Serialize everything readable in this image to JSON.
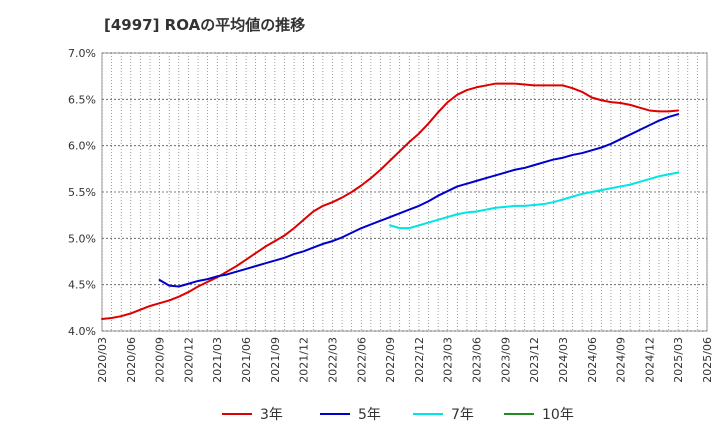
{
  "chart_data": {
    "type": "line",
    "title": "[4997]  ROAの平均値の推移",
    "xlabel": "",
    "ylabel": "",
    "ylim": [
      4.0,
      7.0
    ],
    "y_ticks": [
      "4.0%",
      "4.5%",
      "5.0%",
      "5.5%",
      "6.0%",
      "6.5%",
      "7.0%"
    ],
    "x_ticks": [
      "2020/03",
      "2020/06",
      "2020/09",
      "2020/12",
      "2021/03",
      "2021/06",
      "2021/09",
      "2021/12",
      "2022/03",
      "2022/06",
      "2022/09",
      "2022/12",
      "2023/03",
      "2023/06",
      "2023/09",
      "2023/12",
      "2024/03",
      "2024/06",
      "2024/09",
      "2024/12",
      "2025/03",
      "2025/06"
    ],
    "grid": true,
    "legend_position": "bottom",
    "series": [
      {
        "name": "3年",
        "color": "#dd0000",
        "points": [
          [
            "2020/03",
            4.13
          ],
          [
            "2020/04",
            4.14
          ],
          [
            "2020/05",
            4.16
          ],
          [
            "2020/06",
            4.19
          ],
          [
            "2020/07",
            4.23
          ],
          [
            "2020/08",
            4.27
          ],
          [
            "2020/09",
            4.3
          ],
          [
            "2020/10",
            4.33
          ],
          [
            "2020/11",
            4.37
          ],
          [
            "2020/12",
            4.42
          ],
          [
            "2021/01",
            4.48
          ],
          [
            "2021/02",
            4.53
          ],
          [
            "2021/03",
            4.58
          ],
          [
            "2021/04",
            4.64
          ],
          [
            "2021/05",
            4.7
          ],
          [
            "2021/06",
            4.77
          ],
          [
            "2021/07",
            4.84
          ],
          [
            "2021/08",
            4.91
          ],
          [
            "2021/09",
            4.97
          ],
          [
            "2021/10",
            5.03
          ],
          [
            "2021/11",
            5.11
          ],
          [
            "2021/12",
            5.2
          ],
          [
            "2022/01",
            5.29
          ],
          [
            "2022/02",
            5.35
          ],
          [
            "2022/03",
            5.39
          ],
          [
            "2022/04",
            5.44
          ],
          [
            "2022/05",
            5.5
          ],
          [
            "2022/06",
            5.57
          ],
          [
            "2022/07",
            5.65
          ],
          [
            "2022/08",
            5.74
          ],
          [
            "2022/09",
            5.84
          ],
          [
            "2022/10",
            5.94
          ],
          [
            "2022/11",
            6.04
          ],
          [
            "2022/12",
            6.13
          ],
          [
            "2023/01",
            6.24
          ],
          [
            "2023/02",
            6.36
          ],
          [
            "2023/03",
            6.47
          ],
          [
            "2023/04",
            6.55
          ],
          [
            "2023/05",
            6.6
          ],
          [
            "2023/06",
            6.63
          ],
          [
            "2023/07",
            6.65
          ],
          [
            "2023/08",
            6.67
          ],
          [
            "2023/09",
            6.67
          ],
          [
            "2023/10",
            6.67
          ],
          [
            "2023/11",
            6.66
          ],
          [
            "2023/12",
            6.65
          ],
          [
            "2024/01",
            6.65
          ],
          [
            "2024/02",
            6.65
          ],
          [
            "2024/03",
            6.65
          ],
          [
            "2024/04",
            6.62
          ],
          [
            "2024/05",
            6.58
          ],
          [
            "2024/06",
            6.52
          ],
          [
            "2024/07",
            6.49
          ],
          [
            "2024/08",
            6.47
          ],
          [
            "2024/09",
            6.46
          ],
          [
            "2024/10",
            6.44
          ],
          [
            "2024/11",
            6.41
          ],
          [
            "2024/12",
            6.38
          ],
          [
            "2025/01",
            6.37
          ],
          [
            "2025/02",
            6.37
          ],
          [
            "2025/03",
            6.38
          ]
        ]
      },
      {
        "name": "5年",
        "color": "#0000cc",
        "points": [
          [
            "2020/09",
            4.55
          ],
          [
            "2020/10",
            4.49
          ],
          [
            "2020/11",
            4.48
          ],
          [
            "2020/12",
            4.51
          ],
          [
            "2021/01",
            4.54
          ],
          [
            "2021/02",
            4.56
          ],
          [
            "2021/03",
            4.59
          ],
          [
            "2021/04",
            4.61
          ],
          [
            "2021/05",
            4.64
          ],
          [
            "2021/06",
            4.67
          ],
          [
            "2021/07",
            4.7
          ],
          [
            "2021/08",
            4.73
          ],
          [
            "2021/09",
            4.76
          ],
          [
            "2021/10",
            4.79
          ],
          [
            "2021/11",
            4.83
          ],
          [
            "2021/12",
            4.86
          ],
          [
            "2022/01",
            4.9
          ],
          [
            "2022/02",
            4.94
          ],
          [
            "2022/03",
            4.97
          ],
          [
            "2022/04",
            5.01
          ],
          [
            "2022/05",
            5.06
          ],
          [
            "2022/06",
            5.11
          ],
          [
            "2022/07",
            5.15
          ],
          [
            "2022/08",
            5.19
          ],
          [
            "2022/09",
            5.23
          ],
          [
            "2022/10",
            5.27
          ],
          [
            "2022/11",
            5.31
          ],
          [
            "2022/12",
            5.35
          ],
          [
            "2023/01",
            5.4
          ],
          [
            "2023/02",
            5.46
          ],
          [
            "2023/03",
            5.51
          ],
          [
            "2023/04",
            5.56
          ],
          [
            "2023/05",
            5.59
          ],
          [
            "2023/06",
            5.62
          ],
          [
            "2023/07",
            5.65
          ],
          [
            "2023/08",
            5.68
          ],
          [
            "2023/09",
            5.71
          ],
          [
            "2023/10",
            5.74
          ],
          [
            "2023/11",
            5.76
          ],
          [
            "2023/12",
            5.79
          ],
          [
            "2024/01",
            5.82
          ],
          [
            "2024/02",
            5.85
          ],
          [
            "2024/03",
            5.87
          ],
          [
            "2024/04",
            5.9
          ],
          [
            "2024/05",
            5.92
          ],
          [
            "2024/06",
            5.95
          ],
          [
            "2024/07",
            5.98
          ],
          [
            "2024/08",
            6.02
          ],
          [
            "2024/09",
            6.07
          ],
          [
            "2024/10",
            6.12
          ],
          [
            "2024/11",
            6.17
          ],
          [
            "2024/12",
            6.22
          ],
          [
            "2025/01",
            6.27
          ],
          [
            "2025/02",
            6.31
          ],
          [
            "2025/03",
            6.34
          ]
        ]
      },
      {
        "name": "7年",
        "color": "#00e5e5",
        "points": [
          [
            "2022/09",
            5.14
          ],
          [
            "2022/10",
            5.11
          ],
          [
            "2022/11",
            5.11
          ],
          [
            "2022/12",
            5.14
          ],
          [
            "2023/01",
            5.17
          ],
          [
            "2023/02",
            5.2
          ],
          [
            "2023/03",
            5.23
          ],
          [
            "2023/04",
            5.26
          ],
          [
            "2023/05",
            5.28
          ],
          [
            "2023/06",
            5.29
          ],
          [
            "2023/07",
            5.31
          ],
          [
            "2023/08",
            5.33
          ],
          [
            "2023/09",
            5.34
          ],
          [
            "2023/10",
            5.35
          ],
          [
            "2023/11",
            5.35
          ],
          [
            "2023/12",
            5.36
          ],
          [
            "2024/01",
            5.37
          ],
          [
            "2024/02",
            5.39
          ],
          [
            "2024/03",
            5.42
          ],
          [
            "2024/04",
            5.45
          ],
          [
            "2024/05",
            5.48
          ],
          [
            "2024/06",
            5.5
          ],
          [
            "2024/07",
            5.52
          ],
          [
            "2024/08",
            5.54
          ],
          [
            "2024/09",
            5.56
          ],
          [
            "2024/10",
            5.58
          ],
          [
            "2024/11",
            5.61
          ],
          [
            "2024/12",
            5.64
          ],
          [
            "2025/01",
            5.67
          ],
          [
            "2025/02",
            5.69
          ],
          [
            "2025/03",
            5.71
          ]
        ]
      },
      {
        "name": "10年",
        "color": "#228b22",
        "points": []
      }
    ]
  }
}
